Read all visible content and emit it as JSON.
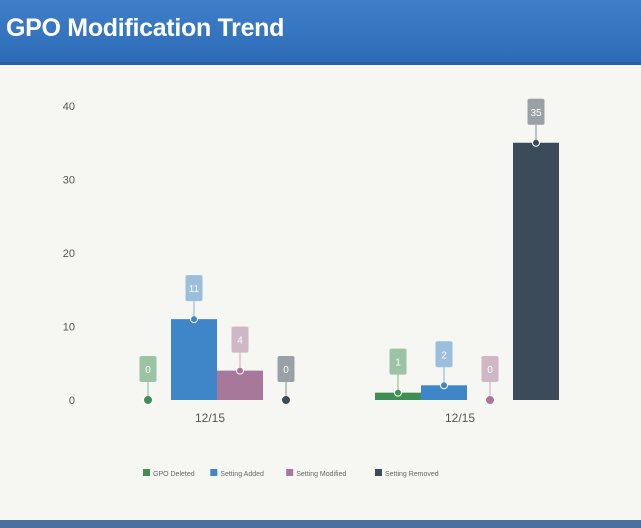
{
  "widget": {
    "title": "GPO Modification Trend"
  },
  "chart_data": {
    "type": "bar",
    "title": "GPO Modification Trend",
    "xlabel": "",
    "ylabel": "",
    "ylim": [
      0,
      40
    ],
    "yticks": [
      0,
      10,
      20,
      30,
      40
    ],
    "categories": [
      "12/15",
      "12/15"
    ],
    "grid": false,
    "legend_position": "bottom",
    "series": [
      {
        "name": "GPO Deleted",
        "color": "#3f8f55",
        "values": [
          0,
          1
        ],
        "labels": [
          "0",
          "1"
        ]
      },
      {
        "name": "Setting Added",
        "color": "#3f86c8",
        "values": [
          11,
          2
        ],
        "labels": [
          "11",
          "2"
        ]
      },
      {
        "name": "Setting Modified",
        "color": "#a8789a",
        "values": [
          4,
          0
        ],
        "labels": [
          "4",
          "0"
        ]
      },
      {
        "name": "Setting Removed",
        "color": "#3c4b59",
        "values": [
          0,
          35
        ],
        "labels": [
          "0",
          "35"
        ]
      }
    ]
  }
}
